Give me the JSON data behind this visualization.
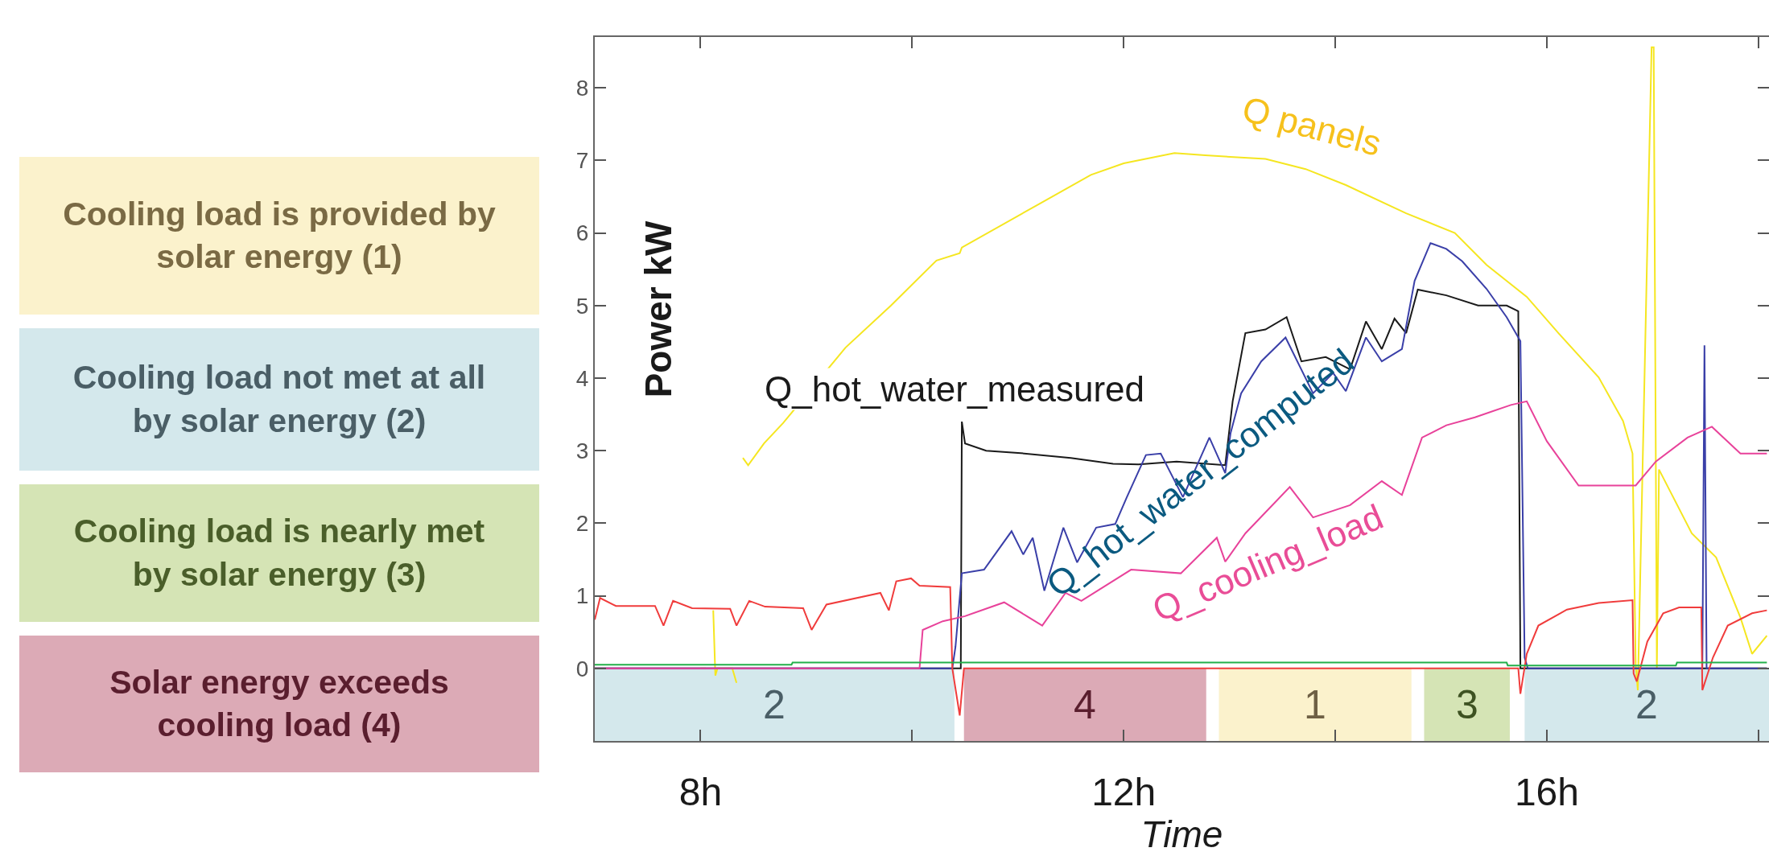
{
  "chart_data": {
    "type": "line",
    "xlabel": "Time",
    "ylabel": "Power kW",
    "xlim": [
      7,
      18.1
    ],
    "ylim": [
      -1,
      8.7
    ],
    "xticks": [
      {
        "value": 8,
        "label": "8h"
      },
      {
        "value": 10,
        "label": null
      },
      {
        "value": 12,
        "label": "12h"
      },
      {
        "value": 14,
        "label": null
      },
      {
        "value": 16,
        "label": "16h"
      },
      {
        "value": 18,
        "label": null
      }
    ],
    "yticks": [
      0,
      1,
      2,
      3,
      4,
      5,
      6,
      7,
      8
    ],
    "grid": false,
    "legend": false,
    "marker": "none",
    "line_style": "solid",
    "series": [
      {
        "name": "Q panels",
        "color": "#f5e620",
        "x": [
          8.0,
          8.05,
          8.07,
          8.1,
          8.12,
          8.14,
          8.16,
          8.3,
          8.34,
          8.36,
          8.4,
          8.45,
          8.6,
          8.78,
          9.37,
          9.8,
          10.23,
          10.45,
          10.47,
          11.69,
          12.0,
          12.48,
          12.77,
          13.34,
          13.72,
          14.1,
          14.67,
          15.13,
          15.43,
          15.81,
          16.11,
          16.49,
          16.72,
          16.81,
          16.84,
          16.86,
          16.99,
          17.01,
          17.04,
          17.06,
          17.37,
          17.6,
          17.83,
          17.94,
          18.08
        ],
        "values": [
          0,
          0,
          null,
          null,
          0.8,
          -0.1,
          0,
          0,
          -0.2,
          null,
          2.9,
          2.8,
          3.1,
          3.38,
          4.42,
          5.0,
          5.62,
          5.72,
          5.8,
          6.8,
          6.96,
          7.1,
          7.07,
          7.02,
          6.88,
          6.66,
          6.27,
          6.0,
          5.56,
          5.12,
          4.62,
          4.01,
          3.41,
          2.96,
          0.04,
          -0.3,
          8.56,
          8.56,
          0,
          2.74,
          1.86,
          1.53,
          0.7,
          0.2,
          0.45
        ]
      },
      {
        "name": "Q_hot_water_measured",
        "color": "#1a1a1a",
        "x": [
          7,
          10.46,
          10.47,
          10.5,
          10.7,
          11.0,
          11.5,
          11.9,
          12.14,
          12.5,
          12.96,
          13.03,
          13.15,
          13.34,
          13.54,
          13.68,
          13.91,
          14.14,
          14.29,
          14.44,
          14.56,
          14.67,
          14.78,
          15.05,
          15.35,
          15.62,
          15.73,
          15.75,
          18.08
        ],
        "values": [
          0,
          0,
          3.4,
          3.1,
          3.0,
          2.97,
          2.9,
          2.82,
          2.81,
          2.85,
          2.8,
          3.68,
          4.62,
          4.67,
          4.84,
          4.23,
          4.29,
          4.12,
          4.78,
          4.4,
          4.82,
          4.62,
          5.22,
          5.14,
          5.0,
          5.0,
          4.92,
          0,
          0
        ]
      },
      {
        "name": "Q_hot_water_computed",
        "color": "#3a3fa8",
        "x": [
          7,
          10.38,
          10.41,
          10.47,
          10.68,
          10.94,
          11.05,
          11.14,
          11.25,
          11.43,
          11.56,
          11.74,
          11.92,
          12.03,
          12.21,
          12.35,
          12.56,
          12.81,
          12.96,
          13.01,
          13.11,
          13.3,
          13.53,
          13.79,
          13.98,
          14.1,
          14.29,
          14.44,
          14.63,
          14.75,
          14.9,
          15.05,
          15.2,
          15.43,
          15.62,
          15.75,
          15.79,
          15.82,
          17.47,
          17.49,
          17.51,
          18.08
        ],
        "values": [
          0,
          0,
          0.3,
          1.31,
          1.36,
          1.89,
          1.57,
          1.8,
          1.07,
          1.94,
          1.46,
          1.94,
          1.99,
          2.36,
          2.94,
          2.96,
          2.36,
          3.18,
          2.69,
          3.24,
          3.79,
          4.23,
          4.56,
          3.79,
          4.07,
          3.82,
          4.56,
          4.23,
          4.4,
          5.34,
          5.86,
          5.78,
          5.61,
          5.23,
          4.84,
          4.51,
          0.15,
          0,
          0,
          4.45,
          0,
          0
        ]
      },
      {
        "name": "Q_cooling_load",
        "color": "#e8429a",
        "x": [
          7,
          10.07,
          10.1,
          10.29,
          10.5,
          10.87,
          11.23,
          11.45,
          11.6,
          12.07,
          12.54,
          12.88,
          12.96,
          13.15,
          13.57,
          13.79,
          14.14,
          14.44,
          14.63,
          14.82,
          15.05,
          15.32,
          15.66,
          15.81,
          16.0,
          16.3,
          16.84,
          17.03,
          17.33,
          17.56,
          17.83,
          18.08
        ],
        "values": [
          0,
          0,
          0.53,
          0.65,
          0.72,
          0.91,
          0.59,
          1.04,
          0.93,
          1.36,
          1.31,
          1.8,
          1.47,
          1.86,
          2.5,
          2.08,
          2.25,
          2.58,
          2.39,
          3.18,
          3.35,
          3.46,
          3.63,
          3.68,
          3.13,
          2.52,
          2.52,
          2.85,
          3.18,
          3.33,
          2.96,
          2.96
        ]
      },
      {
        "color": "#f03c3c",
        "x": [
          7.0,
          7.05,
          7.2,
          7.57,
          7.65,
          7.74,
          7.92,
          8.28,
          8.34,
          8.46,
          8.61,
          8.97,
          9.05,
          9.19,
          9.7,
          9.78,
          9.85,
          9.99,
          10.07,
          10.36,
          10.38,
          10.45,
          10.49,
          15.73,
          15.75,
          15.81,
          15.92,
          16.19,
          16.49,
          16.81,
          16.82,
          16.85,
          16.95,
          17.1,
          17.25,
          17.46,
          17.47,
          17.57,
          17.71,
          17.94,
          18.08
        ],
        "values": [
          0.67,
          0.97,
          0.86,
          0.86,
          0.59,
          0.93,
          0.83,
          0.82,
          0.59,
          0.93,
          0.85,
          0.83,
          0.53,
          0.88,
          1.04,
          0.8,
          1.2,
          1.24,
          1.14,
          1.12,
          0,
          -0.65,
          0,
          0,
          -0.35,
          0.2,
          0.59,
          0.81,
          0.9,
          0.94,
          -0.07,
          -0.18,
          0.37,
          0.76,
          0.84,
          0.84,
          -0.3,
          0.15,
          0.59,
          0.76,
          0.8
        ]
      },
      {
        "color": "#22b04a",
        "x": [
          7,
          8.86,
          8.87,
          15.62,
          15.63,
          17.22,
          17.23,
          18.08
        ],
        "values": [
          0.05,
          0.05,
          0.08,
          0.08,
          0.04,
          0.04,
          0.08,
          0.08
        ]
      }
    ],
    "bands": [
      {
        "axis": "x",
        "from": 7,
        "to": 10.4,
        "label": "2",
        "color": "#d4e8ec"
      },
      {
        "axis": "x",
        "from": 10.49,
        "to": 12.78,
        "label": "4",
        "color": "#dcaab6"
      },
      {
        "axis": "x",
        "from": 12.9,
        "to": 14.72,
        "label": "1",
        "color": "#fbf2cc"
      },
      {
        "axis": "x",
        "from": 14.84,
        "to": 15.65,
        "label": "3",
        "color": "#d5e4b5"
      },
      {
        "axis": "x",
        "from": 15.79,
        "to": 18.1,
        "label": "2",
        "color": "#d4e8ec"
      }
    ],
    "annotations": [
      "Cooling load is provided by solar energy (1)",
      "Cooling load not met at all by solar energy (2)",
      "Cooling load is nearly met by solar energy (3)",
      "Solar energy exceeds cooling load (4)"
    ]
  }
}
